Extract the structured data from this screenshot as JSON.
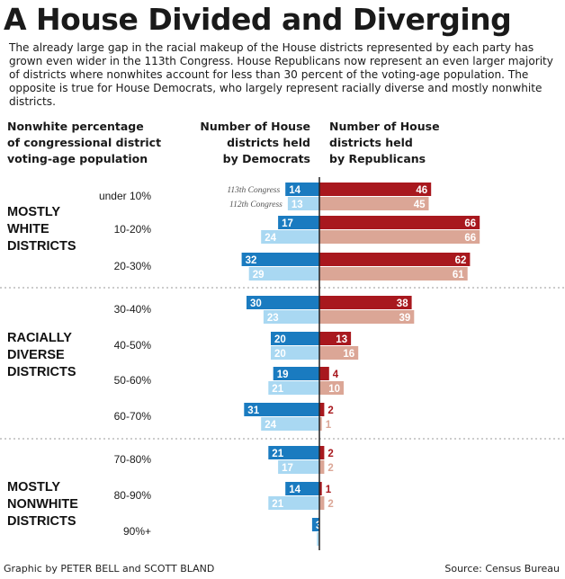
{
  "title": "A House Divided and Diverging",
  "intro": "The already large gap in the racial makeup of the House districts represented by each party has grown even wider in the 113th Congress. House Republicans now represent an even larger majority of districts where nonwhites account for less than 30 percent of the voting-age population. The opposite is true for House Democrats, who largely represent racially diverse and mostly nonwhite districts.",
  "headers": {
    "category": [
      "Nonwhite percentage",
      "of congressional district",
      "voting-age population"
    ],
    "democrats": [
      "Number of House",
      "districts held",
      "by Democrats"
    ],
    "republicans": [
      "Number of House",
      "districts held",
      "by Republicans"
    ]
  },
  "credit_left": "Graphic by PETER BELL and SCOTT BLAND",
  "credit_right": "Source: Census Bureau",
  "colors": {
    "dem_113": "#1a7bc0",
    "dem_112": "#a9d8f2",
    "rep_113": "#a8181e",
    "rep_112": "#dba696",
    "axis": "#222222",
    "divider": "#9a9a9a",
    "label_light": "#ffffff"
  },
  "chart_data": {
    "type": "bar",
    "orientation": "horizontal-diverging",
    "categories": [
      "under 10%",
      "10-20%",
      "20-30%",
      "30-40%",
      "40-50%",
      "50-60%",
      "60-70%",
      "70-80%",
      "80-90%",
      "90%+"
    ],
    "series": [
      {
        "name": "113th Congress",
        "party": "Democrats",
        "values": [
          14,
          17,
          32,
          30,
          20,
          19,
          31,
          21,
          14,
          3
        ]
      },
      {
        "name": "112th Congress",
        "party": "Democrats",
        "values": [
          13,
          24,
          29,
          23,
          20,
          21,
          24,
          17,
          21,
          1
        ]
      },
      {
        "name": "113th Congress",
        "party": "Republicans",
        "values": [
          46,
          66,
          62,
          38,
          13,
          4,
          2,
          2,
          1,
          0
        ]
      },
      {
        "name": "112th Congress",
        "party": "Republicans",
        "values": [
          45,
          66,
          61,
          39,
          16,
          10,
          1,
          2,
          2,
          0
        ]
      }
    ],
    "series_labels": [
      "113th Congress",
      "112th Congress"
    ],
    "groups": [
      {
        "label": [
          "MOSTLY",
          "WHITE",
          "DISTRICTS"
        ],
        "categories": [
          "under 10%",
          "10-20%",
          "20-30%"
        ]
      },
      {
        "label": [
          "RACIALLY",
          "DIVERSE",
          "DISTRICTS"
        ],
        "categories": [
          "30-40%",
          "40-50%",
          "50-60%",
          "60-70%"
        ]
      },
      {
        "label": [
          "MOSTLY",
          "NONWHITE",
          "DISTRICTS"
        ],
        "categories": [
          "70-80%",
          "80-90%",
          "90%+"
        ]
      }
    ]
  }
}
